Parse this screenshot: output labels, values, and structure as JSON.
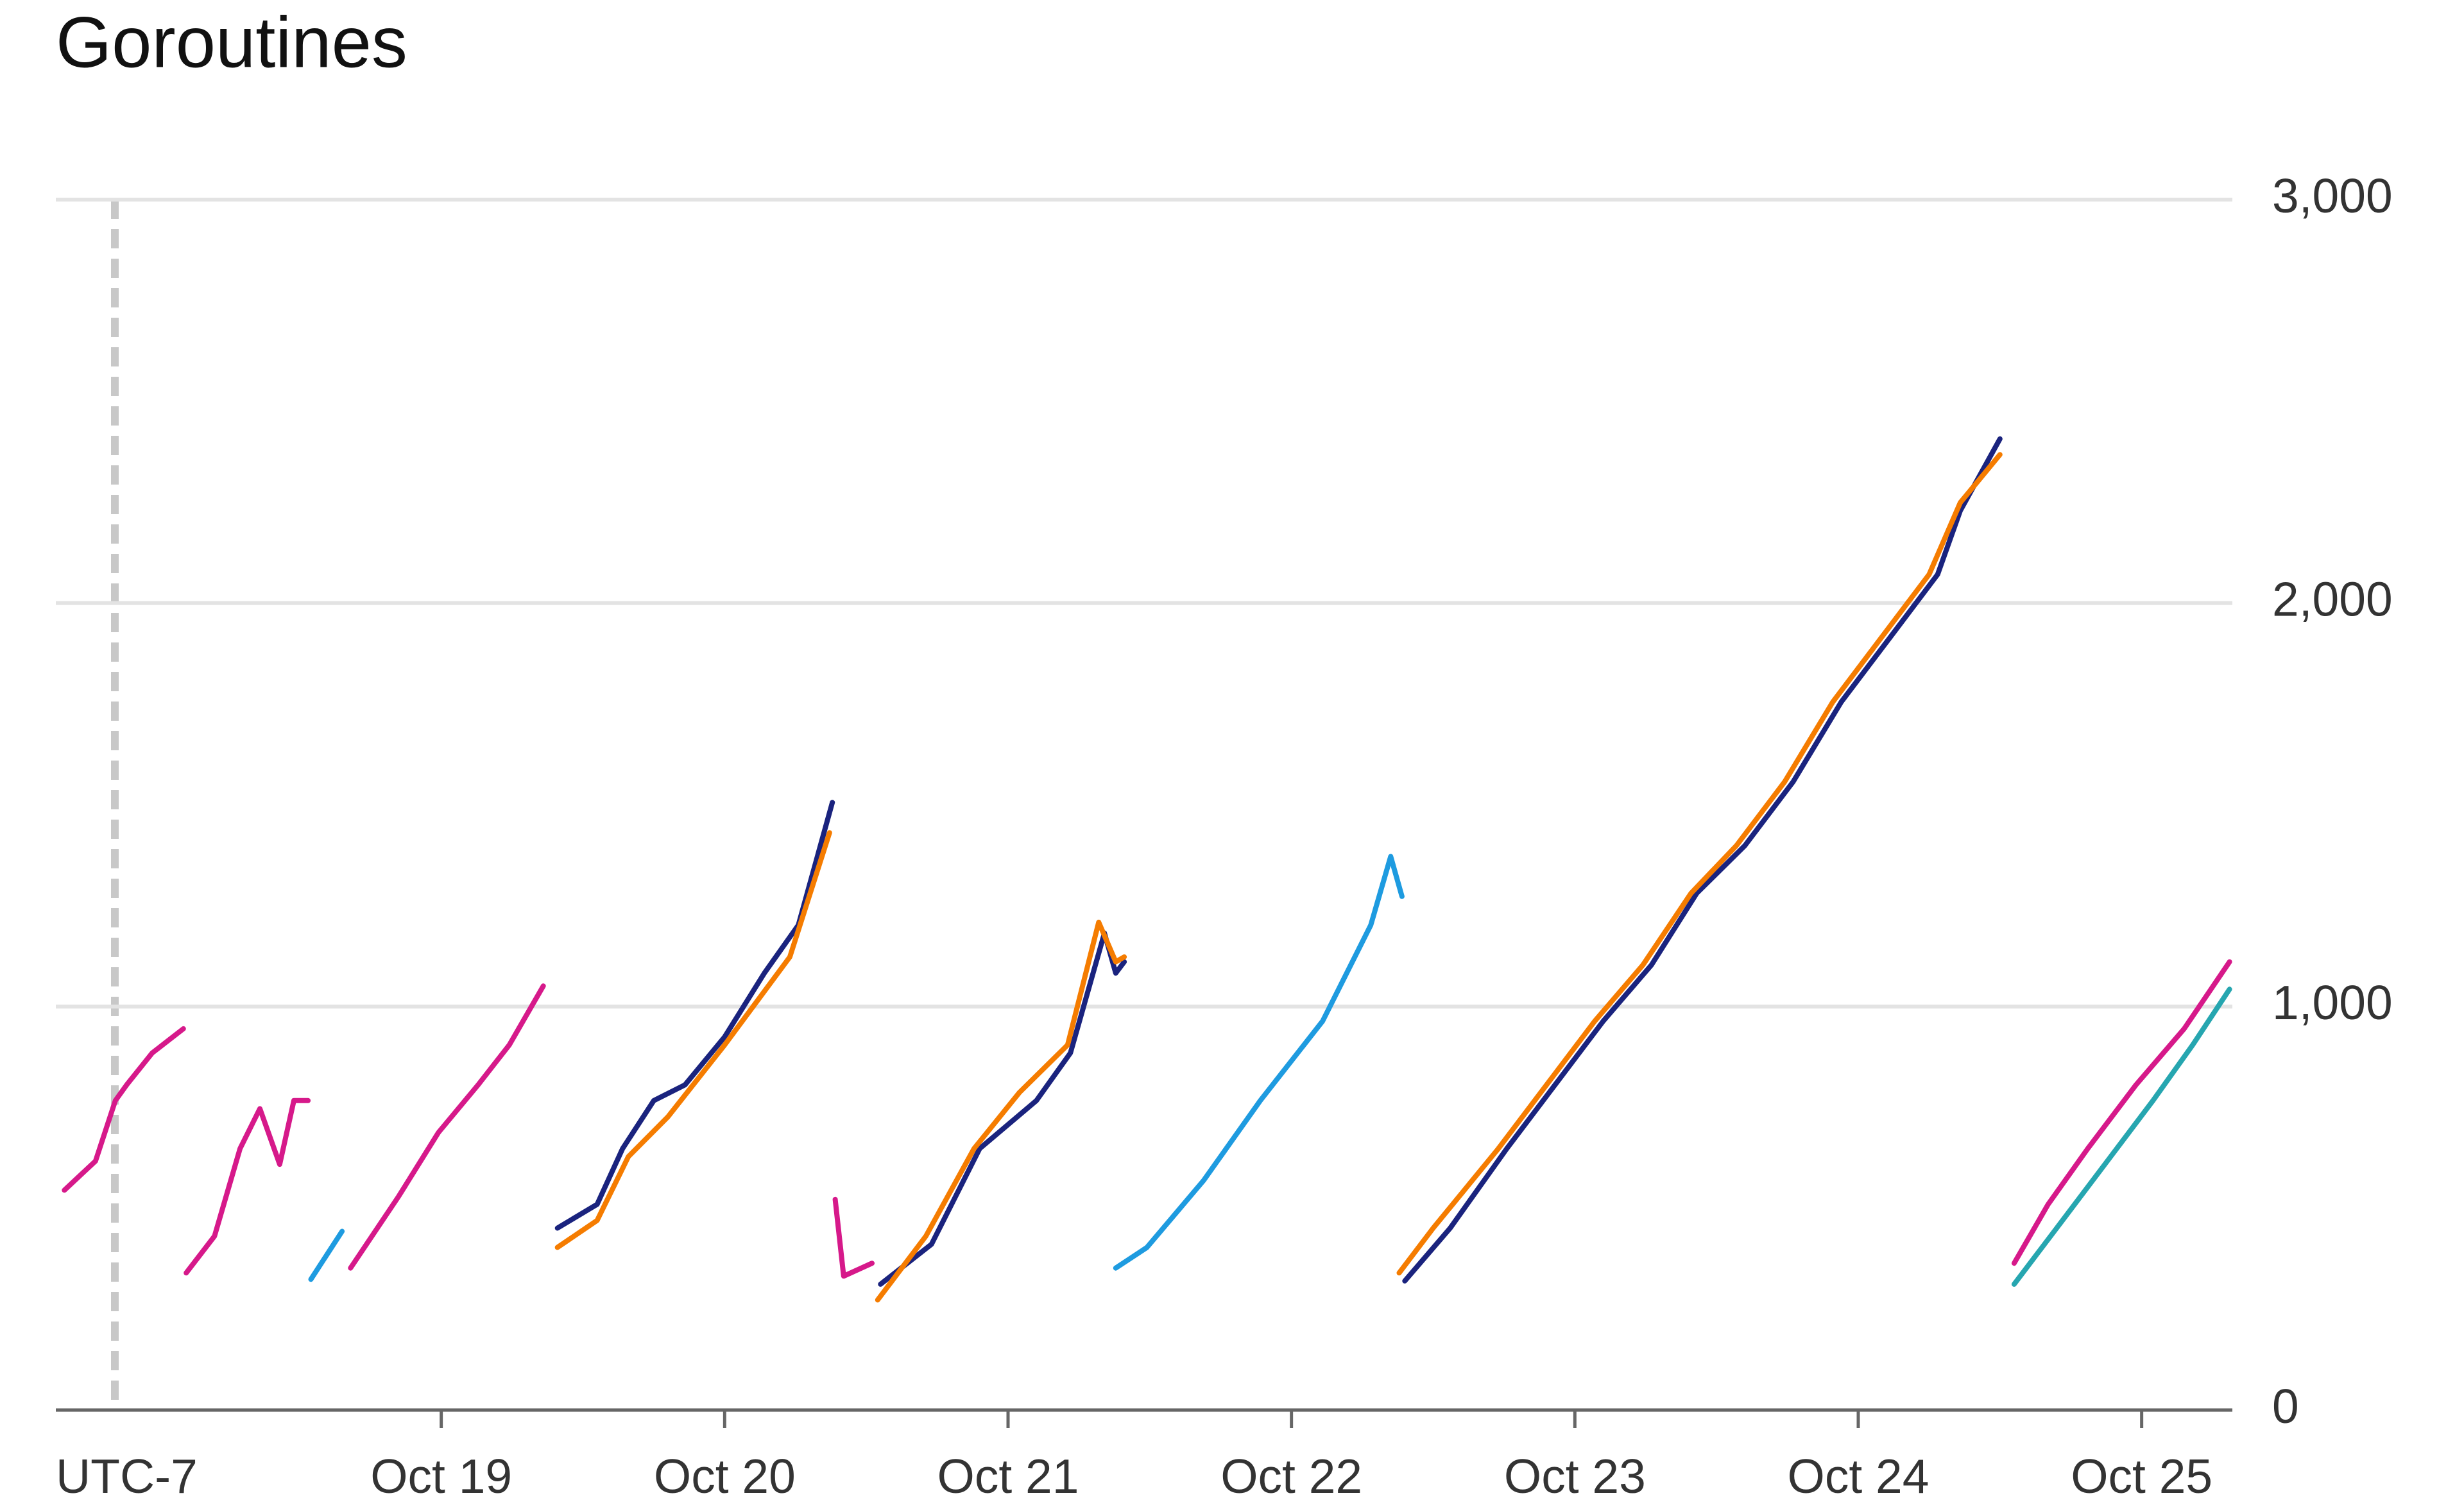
{
  "chart_data": {
    "type": "line",
    "title": "Goroutines",
    "timezone_label": "UTC-7",
    "xlim": [
      -1.36,
      6.32
    ],
    "xticks": [
      {
        "value": 0,
        "label": "Oct 19"
      },
      {
        "value": 1,
        "label": "Oct 20"
      },
      {
        "value": 2,
        "label": "Oct 21"
      },
      {
        "value": 3,
        "label": "Oct 22"
      },
      {
        "value": 4,
        "label": "Oct 23"
      },
      {
        "value": 5,
        "label": "Oct 24"
      },
      {
        "value": 6,
        "label": "Oct 25"
      }
    ],
    "ylim": [
      0,
      3000
    ],
    "yticks": [
      {
        "value": 0,
        "label": "0"
      },
      {
        "value": 1000,
        "label": "1,000"
      },
      {
        "value": 2000,
        "label": "2,000"
      },
      {
        "value": 3000,
        "label": "3,000"
      }
    ],
    "grid": true,
    "series": [
      {
        "color": "#1a237e",
        "x": [
          0.41,
          0.55,
          0.64,
          0.75,
          0.86,
          1.0,
          1.14,
          1.26,
          1.38,
          null,
          1.55,
          1.73,
          1.9,
          2.1,
          2.22,
          2.34,
          2.38,
          2.41,
          null,
          3.4,
          3.56,
          3.76,
          3.93,
          4.1,
          4.27,
          4.43,
          4.6,
          4.77,
          4.94,
          5.11,
          5.28,
          5.36,
          5.5
        ],
        "values": [
          451,
          510,
          648,
          767,
          806,
          925,
          1083,
          1202,
          1506,
          null,
          312,
          411,
          648,
          767,
          885,
          1182,
          1083,
          1111,
          null,
          320,
          451,
          648,
          806,
          964,
          1103,
          1281,
          1399,
          1557,
          1755,
          1913,
          2071,
          2229,
          2407
        ]
      },
      {
        "color": "#26a6b0",
        "x": [
          5.55,
          5.7,
          5.87,
          6.04,
          6.18,
          6.31
        ],
        "values": [
          312,
          451,
          609,
          767,
          905,
          1043
        ]
      },
      {
        "color": "#1e9be0",
        "x": [
          -0.46,
          -0.35,
          null,
          2.38,
          2.49,
          2.69,
          2.89,
          3.11,
          3.28,
          3.35,
          3.39
        ],
        "values": [
          324,
          443,
          null,
          352,
          403,
          569,
          767,
          964,
          1202,
          1372,
          1273
        ]
      },
      {
        "color": "#f57c00",
        "x": [
          0.41,
          0.55,
          0.66,
          0.8,
          1.0,
          1.23,
          1.37,
          null,
          1.54,
          1.71,
          1.88,
          2.04,
          2.21,
          2.32,
          2.38,
          2.41,
          null,
          3.38,
          3.5,
          3.73,
          3.9,
          4.07,
          4.24,
          4.41,
          4.57,
          4.74,
          4.91,
          5.08,
          5.25,
          5.36,
          5.5
        ],
        "values": [
          403,
          470,
          628,
          727,
          905,
          1123,
          1431,
          null,
          273,
          431,
          648,
          787,
          905,
          1209,
          1111,
          1123,
          null,
          340,
          451,
          648,
          806,
          964,
          1103,
          1281,
          1399,
          1557,
          1755,
          1913,
          2071,
          2249,
          2368
        ]
      },
      {
        "color": "#d6198a",
        "x": [
          -1.33,
          -1.22,
          -1.15,
          -1.11,
          -1.02,
          -0.91,
          null,
          -0.9,
          -0.8,
          -0.71,
          -0.64,
          -0.57,
          -0.52,
          -0.47,
          null,
          -0.32,
          -0.15,
          -0.01,
          0.13,
          0.24,
          0.36,
          null,
          1.39,
          1.42,
          1.52,
          null,
          5.55,
          5.67,
          5.81,
          5.98,
          6.15,
          6.31
        ],
        "values": [
          545,
          617,
          767,
          806,
          885,
          945,
          null,
          340,
          431,
          648,
          747,
          609,
          767,
          767,
          null,
          352,
          530,
          688,
          806,
          905,
          1051,
          null,
          522,
          332,
          364,
          null,
          364,
          510,
          648,
          806,
          945,
          1111
        ]
      }
    ]
  }
}
